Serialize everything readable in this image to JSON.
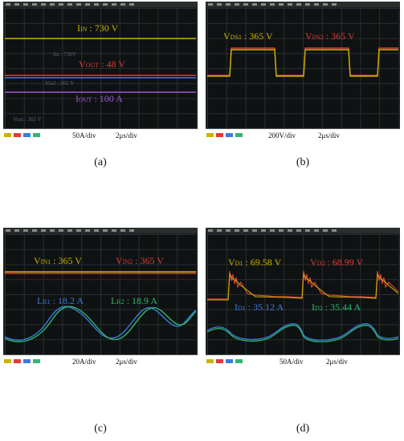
{
  "panels": [
    {
      "caption": "(a)",
      "scale": [
        "50A/div",
        "2μs/div"
      ],
      "labels": [
        {
          "main": "I",
          "sub": "IN",
          "rest": " : 730 V",
          "color": "#c9b400"
        },
        {
          "main": "V",
          "sub": "OUT",
          "rest": " : 48 V",
          "color": "#e03a3a"
        },
        {
          "main": "I",
          "sub": "OUT",
          "rest": " : 100 A",
          "color": "#9b59d6"
        }
      ]
    },
    {
      "caption": "(b)",
      "scale": [
        "200V/div",
        "2μs/div"
      ],
      "labels": [
        {
          "main": "V",
          "sub": "DS1",
          "rest": " : 365 V",
          "color": "#c9b400"
        },
        {
          "main": "V",
          "sub": "DS2",
          "rest": " : 365 V",
          "color": "#e03a3a"
        }
      ]
    },
    {
      "caption": "(c)",
      "scale": [
        "20A/div",
        "2μs/div"
      ],
      "labels": [
        {
          "main": "V",
          "sub": "IN1",
          "rest": " : 365 V",
          "color": "#c9b400"
        },
        {
          "main": "V",
          "sub": "IN2",
          "rest": " : 365 V",
          "color": "#e03a3a"
        },
        {
          "main": "L",
          "sub": "R1",
          "rest": " : 18.2 A",
          "color": "#3a7be0"
        },
        {
          "main": "L",
          "sub": "R2",
          "rest": " : 18.9 A",
          "color": "#2fb86e"
        }
      ]
    },
    {
      "caption": "(d)",
      "scale": [
        "50A/div",
        "2μs/div"
      ],
      "labels": [
        {
          "main": "V",
          "sub": "D1",
          "rest": " : 69.58 V",
          "color": "#c9b400"
        },
        {
          "main": "V",
          "sub": "D2",
          "rest": " : 68.99 V",
          "color": "#e03a3a"
        },
        {
          "main": "I",
          "sub": "D1",
          "rest": " : 35.12 A",
          "color": "#3a7be0"
        },
        {
          "main": "I",
          "sub": "D2",
          "rest": " : 35.44 A",
          "color": "#2fb86e"
        }
      ]
    }
  ],
  "colors": {
    "ch1": "#c9b400",
    "ch2": "#e03a3a",
    "ch3": "#3a7be0",
    "ch4": "#2fb86e",
    "ch5": "#9b59d6"
  }
}
